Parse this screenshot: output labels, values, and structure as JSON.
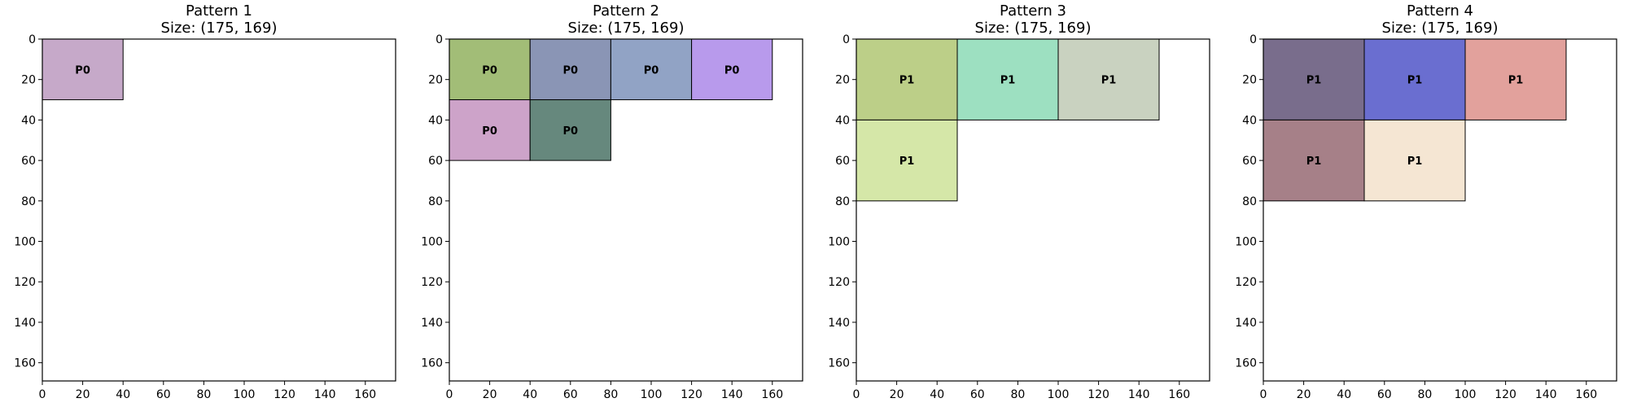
{
  "chart_data": [
    {
      "type": "rectangles",
      "title": "Pattern 1",
      "subtitle": "Size: (175, 169)",
      "xlim": [
        0,
        175
      ],
      "ylim": [
        169,
        0
      ],
      "xticks": [
        0,
        20,
        40,
        60,
        80,
        100,
        120,
        140,
        160
      ],
      "yticks": [
        0,
        20,
        40,
        60,
        80,
        100,
        120,
        140,
        160
      ],
      "rects": [
        {
          "label": "P0",
          "x": 0,
          "y": 0,
          "w": 40,
          "h": 30,
          "color": "#c6a9c9"
        }
      ]
    },
    {
      "type": "rectangles",
      "title": "Pattern 2",
      "subtitle": "Size: (175, 169)",
      "xlim": [
        0,
        175
      ],
      "ylim": [
        169,
        0
      ],
      "xticks": [
        0,
        20,
        40,
        60,
        80,
        100,
        120,
        140,
        160
      ],
      "yticks": [
        0,
        20,
        40,
        60,
        80,
        100,
        120,
        140,
        160
      ],
      "rects": [
        {
          "label": "P0",
          "x": 0,
          "y": 0,
          "w": 40,
          "h": 30,
          "color": "#a2bd77"
        },
        {
          "label": "P0",
          "x": 40,
          "y": 0,
          "w": 40,
          "h": 30,
          "color": "#8a95b5"
        },
        {
          "label": "P0",
          "x": 80,
          "y": 0,
          "w": 40,
          "h": 30,
          "color": "#91a3c5"
        },
        {
          "label": "P0",
          "x": 120,
          "y": 0,
          "w": 40,
          "h": 30,
          "color": "#b89aec"
        },
        {
          "label": "P0",
          "x": 0,
          "y": 30,
          "w": 40,
          "h": 30,
          "color": "#cda3c9"
        },
        {
          "label": "P0",
          "x": 40,
          "y": 30,
          "w": 40,
          "h": 30,
          "color": "#66887d"
        }
      ]
    },
    {
      "type": "rectangles",
      "title": "Pattern 3",
      "subtitle": "Size: (175, 169)",
      "xlim": [
        0,
        175
      ],
      "ylim": [
        169,
        0
      ],
      "xticks": [
        0,
        20,
        40,
        60,
        80,
        100,
        120,
        140,
        160
      ],
      "yticks": [
        0,
        20,
        40,
        60,
        80,
        100,
        120,
        140,
        160
      ],
      "rects": [
        {
          "label": "P1",
          "x": 0,
          "y": 0,
          "w": 50,
          "h": 40,
          "color": "#bccf88"
        },
        {
          "label": "P1",
          "x": 50,
          "y": 0,
          "w": 50,
          "h": 40,
          "color": "#9de0c1"
        },
        {
          "label": "P1",
          "x": 100,
          "y": 0,
          "w": 50,
          "h": 40,
          "color": "#c9d2c0"
        },
        {
          "label": "P1",
          "x": 0,
          "y": 40,
          "w": 50,
          "h": 40,
          "color": "#d5e7a8"
        }
      ]
    },
    {
      "type": "rectangles",
      "title": "Pattern 4",
      "subtitle": "Size: (175, 169)",
      "xlim": [
        0,
        175
      ],
      "ylim": [
        169,
        0
      ],
      "xticks": [
        0,
        20,
        40,
        60,
        80,
        100,
        120,
        140,
        160
      ],
      "yticks": [
        0,
        20,
        40,
        60,
        80,
        100,
        120,
        140,
        160
      ],
      "rects": [
        {
          "label": "P1",
          "x": 0,
          "y": 0,
          "w": 50,
          "h": 40,
          "color": "#796d8c"
        },
        {
          "label": "P1",
          "x": 50,
          "y": 0,
          "w": 50,
          "h": 40,
          "color": "#6a6ed0"
        },
        {
          "label": "P1",
          "x": 100,
          "y": 0,
          "w": 50,
          "h": 40,
          "color": "#e2a19c"
        },
        {
          "label": "P1",
          "x": 0,
          "y": 40,
          "w": 50,
          "h": 40,
          "color": "#a68088"
        },
        {
          "label": "P1",
          "x": 50,
          "y": 40,
          "w": 50,
          "h": 40,
          "color": "#f5e6d3"
        }
      ]
    }
  ]
}
